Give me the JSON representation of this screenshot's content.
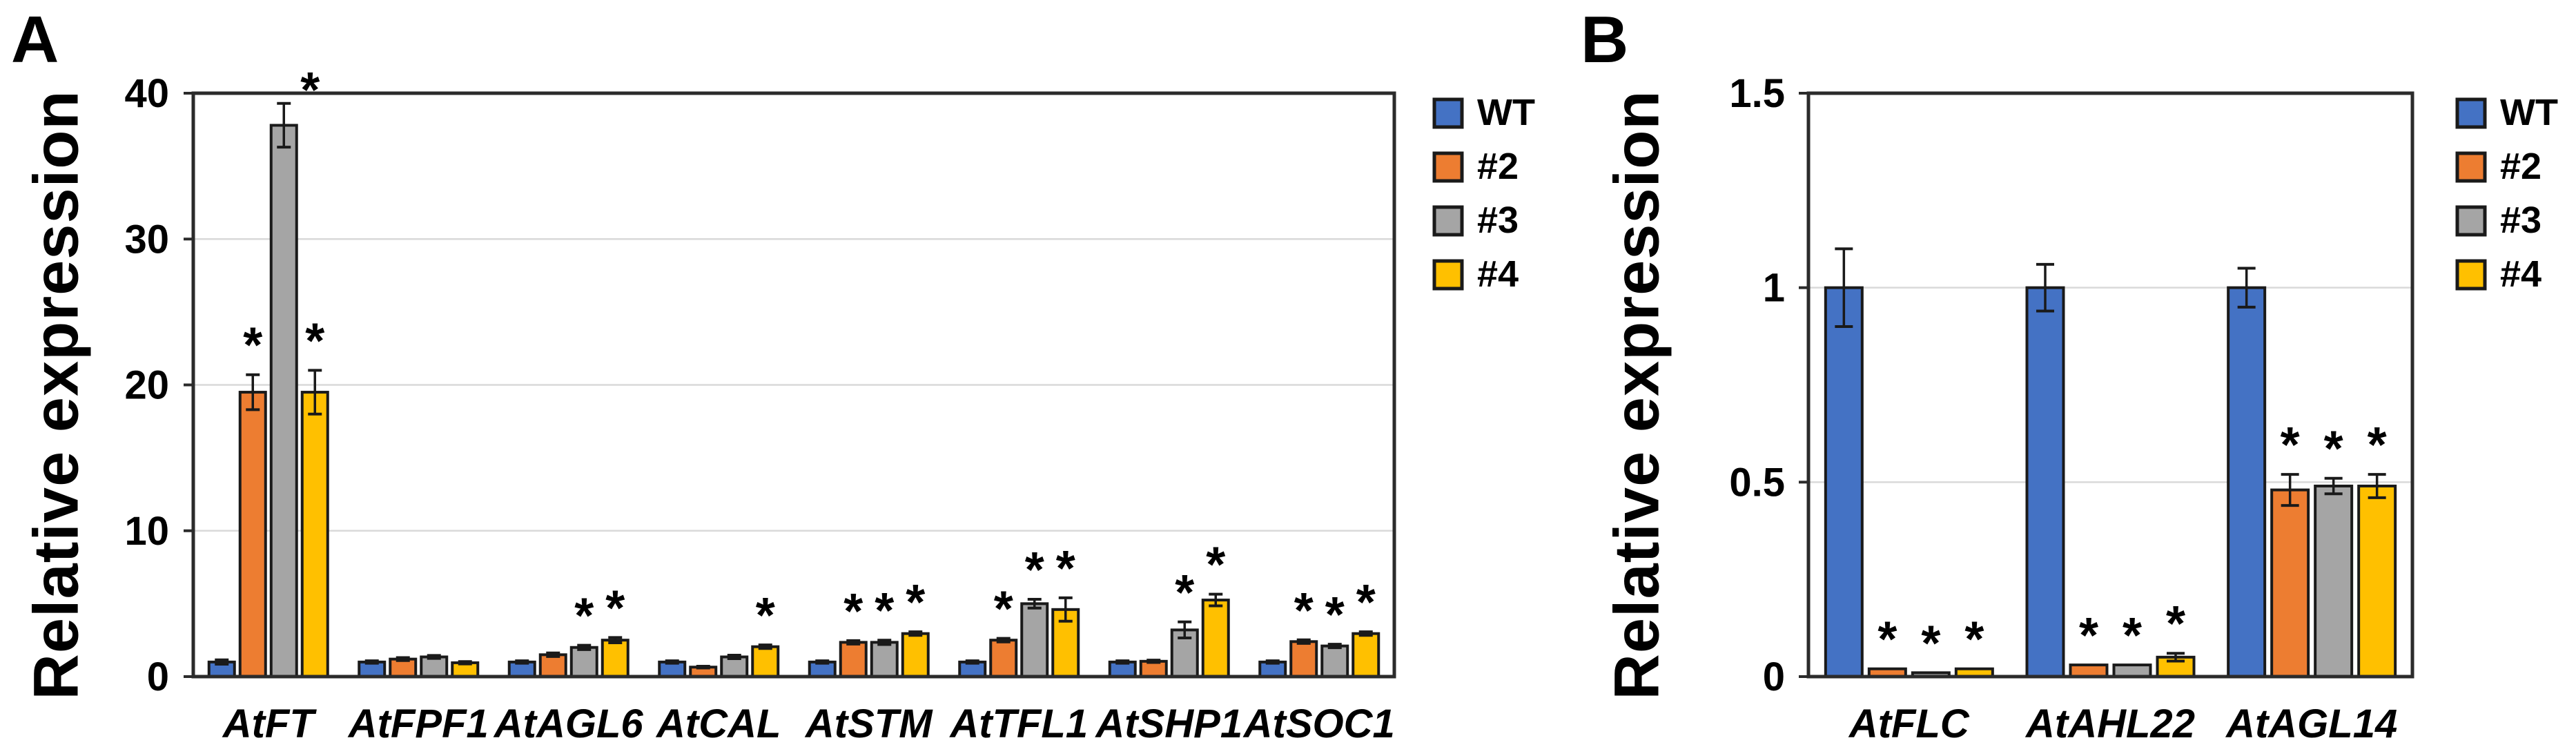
{
  "figure": {
    "panels": [
      {
        "panel_label": "A",
        "y_axis_title": "Relative expression"
      },
      {
        "panel_label": "B",
        "y_axis_title": "Relative expression"
      }
    ]
  },
  "colors": {
    "series_wt": "#4472C4",
    "series_2": "#ED7D31",
    "series_3": "#A5A5A5",
    "series_4": "#FFC000",
    "bar_outline": "#1a1a1a",
    "axis": "#2b2b2b",
    "gridline": "#d9d9d9",
    "text": "#000000",
    "error_bar": "#1a1a1a"
  },
  "chart_data": [
    {
      "type": "bar",
      "panel": "A",
      "title": "A",
      "ylabel": "Relative expression",
      "xlabel": "",
      "ylim": [
        0,
        40
      ],
      "yticks": [
        0,
        10,
        20,
        30,
        40
      ],
      "ytick_labels": [
        "0",
        "10",
        "20",
        "30",
        "40"
      ],
      "grid": true,
      "legend_position": "right",
      "significance_marker": "*",
      "categories": [
        "AtFT",
        "AtFPF1",
        "AtAGL6",
        "AtCAL",
        "AtSTM",
        "AtTFL1",
        "AtSHP1",
        "AtSOC1"
      ],
      "series": [
        {
          "name": "WT",
          "color": "#4472C4",
          "values": [
            1.0,
            1.0,
            1.0,
            1.0,
            1.0,
            1.0,
            1.0,
            1.0
          ],
          "errors": [
            0.15,
            0.08,
            0.08,
            0.08,
            0.08,
            0.08,
            0.08,
            0.08
          ],
          "sig": [
            false,
            false,
            false,
            false,
            false,
            false,
            false,
            false
          ]
        },
        {
          "name": "#2",
          "color": "#ED7D31",
          "values": [
            19.5,
            1.2,
            1.5,
            0.65,
            2.35,
            2.5,
            1.05,
            2.4
          ],
          "errors": [
            1.2,
            0.1,
            0.12,
            0.06,
            0.12,
            0.12,
            0.08,
            0.12
          ],
          "sig": [
            true,
            false,
            false,
            false,
            true,
            true,
            false,
            true
          ]
        },
        {
          "name": "#3",
          "color": "#A5A5A5",
          "values": [
            37.8,
            1.35,
            2.0,
            1.35,
            2.35,
            5.0,
            3.2,
            2.1
          ],
          "errors": [
            1.5,
            0.1,
            0.15,
            0.12,
            0.15,
            0.3,
            0.55,
            0.12
          ],
          "sig": [
            true,
            false,
            true,
            false,
            true,
            true,
            true,
            true
          ]
        },
        {
          "name": "#4",
          "color": "#FFC000",
          "values": [
            19.5,
            0.95,
            2.5,
            2.05,
            2.95,
            4.6,
            5.25,
            2.95
          ],
          "errors": [
            1.5,
            0.08,
            0.18,
            0.12,
            0.12,
            0.8,
            0.4,
            0.12
          ],
          "sig": [
            true,
            false,
            true,
            true,
            true,
            true,
            true,
            true
          ]
        }
      ]
    },
    {
      "type": "bar",
      "panel": "B",
      "title": "B",
      "ylabel": "Relative expression",
      "xlabel": "",
      "ylim": [
        0,
        1.5
      ],
      "yticks": [
        0,
        0.5,
        1,
        1.5
      ],
      "ytick_labels": [
        "0",
        "0.5",
        "1",
        "1.5"
      ],
      "grid": true,
      "legend_position": "right",
      "significance_marker": "*",
      "categories": [
        "AtFLC",
        "AtAHL22",
        "AtAGL14"
      ],
      "series": [
        {
          "name": "WT",
          "color": "#4472C4",
          "values": [
            1.0,
            1.0,
            1.0
          ],
          "errors": [
            0.1,
            0.06,
            0.05
          ],
          "sig": [
            false,
            false,
            false
          ]
        },
        {
          "name": "#2",
          "color": "#ED7D31",
          "values": [
            0.02,
            0.03,
            0.48
          ],
          "errors": [
            0,
            0,
            0.04
          ],
          "sig": [
            true,
            true,
            true
          ]
        },
        {
          "name": "#3",
          "color": "#A5A5A5",
          "values": [
            0.01,
            0.03,
            0.49
          ],
          "errors": [
            0,
            0,
            0.02
          ],
          "sig": [
            true,
            true,
            true
          ]
        },
        {
          "name": "#4",
          "color": "#FFC000",
          "values": [
            0.02,
            0.05,
            0.49
          ],
          "errors": [
            0,
            0.01,
            0.03
          ],
          "sig": [
            true,
            true,
            true
          ]
        }
      ]
    }
  ]
}
